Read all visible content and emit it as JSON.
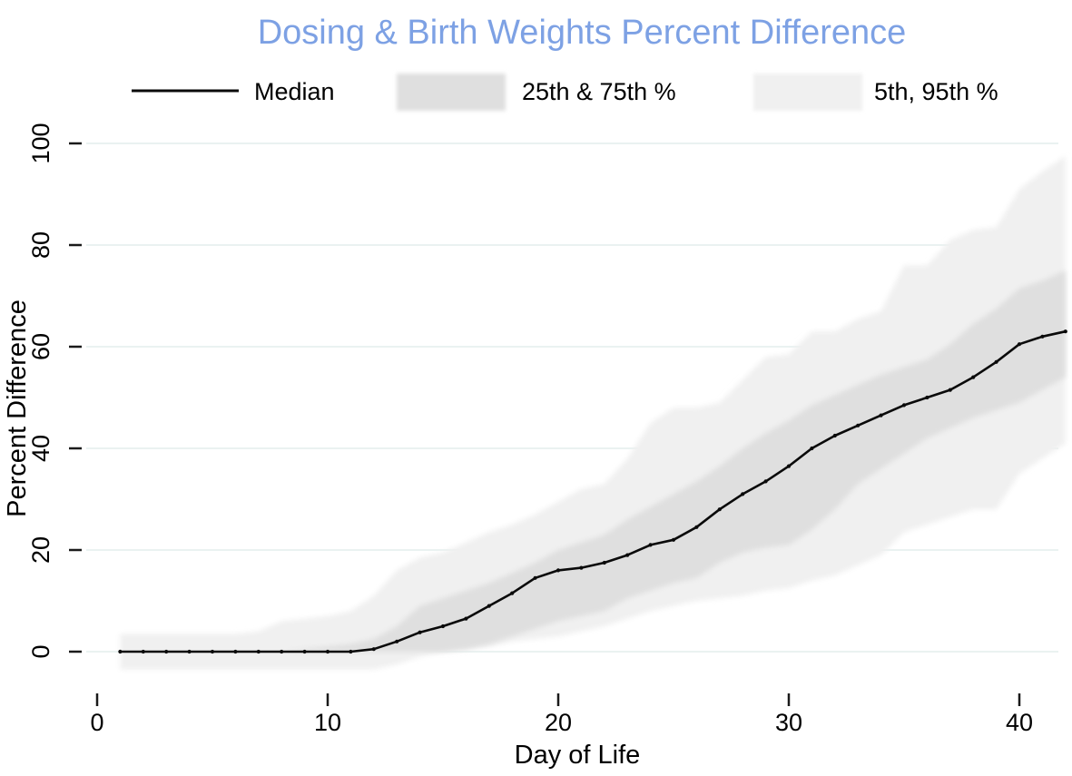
{
  "title": {
    "text": "Dosing & Birth Weights Percent Difference",
    "color": "#7DA1E4"
  },
  "legend": {
    "median_label": "Median",
    "iqr_label": "25th & 75th %",
    "outer_label": "5th, 95th %",
    "median_color": "#0a0a0a",
    "iqr_color": "#dfdfdf",
    "outer_color": "#f0f0f0"
  },
  "axes": {
    "x_title": "Day of Life",
    "y_title": "Percent Difference",
    "x_ticks": [
      0,
      10,
      20,
      30,
      40
    ],
    "y_ticks": [
      0,
      20,
      40,
      60,
      80,
      100
    ]
  },
  "colors": {
    "background": "#ffffff",
    "gridline": "#eaf2f1",
    "tick": "#1a1a1a",
    "median_line": "#0a0a0a",
    "band_iqr": "#dfdfdf",
    "band_outer": "#f0f0f0",
    "title": "#7DA1E4"
  },
  "chart_data": {
    "type": "line",
    "title": "Dosing & Birth Weights Percent Difference",
    "xlabel": "Day of Life",
    "ylabel": "Percent Difference",
    "xlim": [
      0,
      42.5
    ],
    "ylim": [
      -5,
      110
    ],
    "x_ticks": [
      0,
      10,
      20,
      30,
      40
    ],
    "y_ticks": [
      0,
      20,
      40,
      60,
      80,
      100
    ],
    "grid": "horizontal",
    "legend_position": "top",
    "x": [
      1,
      2,
      3,
      4,
      5,
      6,
      7,
      8,
      9,
      10,
      11,
      12,
      13,
      14,
      15,
      16,
      17,
      18,
      19,
      20,
      21,
      22,
      23,
      24,
      25,
      26,
      27,
      28,
      29,
      30,
      31,
      32,
      33,
      34,
      35,
      36,
      37,
      38,
      39,
      40,
      41,
      42
    ],
    "series": [
      {
        "name": "Median",
        "type": "line",
        "color": "#0a0a0a",
        "values": [
          0,
          0,
          0,
          0,
          0,
          0,
          0,
          0,
          0,
          0,
          0,
          0.5,
          2,
          3.8,
          5,
          6.5,
          9,
          11.5,
          14.5,
          16,
          16.5,
          17.5,
          19,
          21,
          22,
          24.5,
          28,
          31,
          33.5,
          36.5,
          40,
          42.5,
          44.5,
          46.5,
          48.5,
          50,
          51.5,
          54,
          57,
          60.5,
          62,
          63
        ]
      },
      {
        "name": "25th & 75th %",
        "type": "band",
        "color": "#dfdfdf",
        "lower": [
          0,
          0,
          0,
          0,
          0,
          0,
          0,
          0,
          0,
          0,
          0,
          0,
          0,
          0,
          0,
          0.5,
          1.5,
          3,
          4.5,
          6,
          7,
          8,
          10.5,
          12,
          13.5,
          14.5,
          17.5,
          19.5,
          20.5,
          21,
          24,
          28,
          33,
          36,
          39,
          42,
          44,
          46,
          47.5,
          49,
          51.5,
          54
        ],
        "upper": [
          0,
          0,
          0,
          0,
          0,
          0,
          0,
          0,
          0.5,
          1,
          1.5,
          2.5,
          5,
          9,
          10.5,
          12,
          13.5,
          15.5,
          17.5,
          20,
          21.5,
          23,
          26,
          28.5,
          31,
          33.5,
          36.5,
          40,
          43,
          45.5,
          48.5,
          50.5,
          52.5,
          54.5,
          56,
          57.5,
          60.5,
          64.5,
          67.5,
          71.5,
          73,
          75
        ]
      },
      {
        "name": "5th, 95th %",
        "type": "band",
        "color": "#f0f0f0",
        "lower": [
          -3.5,
          -3.5,
          -3.5,
          -3.5,
          -3.5,
          -3.5,
          -3.5,
          -3.5,
          -3.5,
          -3.5,
          -3.5,
          -3.5,
          -2.5,
          -1,
          0,
          0.5,
          1,
          2,
          2.5,
          3,
          4,
          5,
          6.5,
          8,
          9,
          10,
          10.5,
          11,
          12,
          12.5,
          14,
          15,
          17,
          19,
          23.5,
          25,
          26.5,
          28,
          28,
          35,
          38,
          41
        ],
        "upper": [
          3.5,
          3.5,
          3.5,
          3.5,
          3.5,
          3.5,
          4,
          6,
          6.5,
          7,
          8,
          11,
          16,
          18.5,
          19.5,
          21.5,
          23.5,
          25,
          27,
          29.5,
          32,
          33,
          38,
          45,
          48,
          48,
          49,
          53.5,
          58,
          58.5,
          63,
          63,
          65.5,
          67,
          76,
          76,
          81,
          83,
          83.5,
          91,
          94.5,
          97.5
        ]
      }
    ]
  }
}
